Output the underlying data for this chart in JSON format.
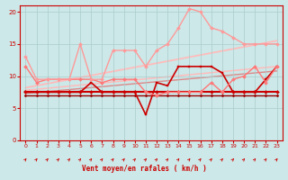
{
  "xlabel": "Vent moyen/en rafales ( km/h )",
  "xlim": [
    -0.5,
    23.5
  ],
  "ylim": [
    0,
    21
  ],
  "yticks": [
    0,
    5,
    10,
    15,
    20
  ],
  "xticks": [
    0,
    1,
    2,
    3,
    4,
    5,
    6,
    7,
    8,
    9,
    10,
    11,
    12,
    13,
    14,
    15,
    16,
    17,
    18,
    19,
    20,
    21,
    22,
    23
  ],
  "bg_color": "#cce8e8",
  "grid_color": "#aacccc",
  "line_flat1": {
    "x": [
      0,
      1,
      2,
      3,
      4,
      5,
      6,
      7,
      8,
      9,
      10,
      11,
      12,
      13,
      14,
      15,
      16,
      17,
      18,
      19,
      20,
      21,
      22,
      23
    ],
    "y": [
      7.5,
      7.5,
      7.5,
      7.5,
      7.5,
      7.5,
      7.5,
      7.5,
      7.5,
      7.5,
      7.5,
      7.5,
      7.5,
      7.5,
      7.5,
      7.5,
      7.5,
      7.5,
      7.5,
      7.5,
      7.5,
      7.5,
      7.5,
      7.5
    ],
    "color": "#cc0000",
    "lw": 1.5,
    "marker": "D",
    "ms": 2.0
  },
  "line_flat2": {
    "x": [
      0,
      1,
      2,
      3,
      4,
      5,
      6,
      7,
      8,
      9,
      10,
      11,
      12,
      13,
      14,
      15,
      16,
      17,
      18,
      19,
      20,
      21,
      22,
      23
    ],
    "y": [
      7.0,
      7.0,
      7.0,
      7.0,
      7.0,
      7.0,
      7.0,
      7.0,
      7.0,
      7.0,
      7.0,
      7.0,
      7.0,
      7.0,
      7.0,
      7.0,
      7.0,
      7.0,
      7.0,
      7.0,
      7.0,
      7.0,
      7.0,
      7.0
    ],
    "color": "#990000",
    "lw": 1.0,
    "marker": "D",
    "ms": 1.5
  },
  "line_wavy": {
    "x": [
      0,
      1,
      2,
      3,
      4,
      5,
      6,
      7,
      8,
      9,
      10,
      11,
      12,
      13,
      14,
      15,
      16,
      17,
      18,
      19,
      20,
      21,
      22,
      23
    ],
    "y": [
      7.5,
      7.5,
      7.5,
      7.5,
      7.5,
      7.5,
      9.0,
      7.5,
      7.5,
      7.5,
      7.5,
      4.0,
      9.0,
      8.5,
      11.5,
      11.5,
      11.5,
      11.5,
      10.5,
      7.5,
      7.5,
      7.5,
      9.5,
      11.5
    ],
    "color": "#cc0000",
    "lw": 1.2,
    "marker": "s",
    "ms": 2.0
  },
  "line_pink1": {
    "x": [
      0,
      1,
      2,
      3,
      4,
      5,
      6,
      7,
      8,
      9,
      10,
      11,
      12,
      13,
      14,
      15,
      16,
      17,
      18,
      19,
      20,
      21,
      22,
      23
    ],
    "y": [
      11.5,
      9.0,
      9.5,
      9.5,
      9.5,
      9.5,
      9.5,
      9.0,
      9.5,
      9.5,
      9.5,
      7.5,
      7.0,
      7.5,
      7.5,
      7.5,
      7.5,
      9.0,
      7.5,
      9.5,
      10.0,
      11.5,
      9.0,
      11.5
    ],
    "color": "#ff7777",
    "lw": 1.0,
    "marker": "D",
    "ms": 2.0
  },
  "line_pink2": {
    "x": [
      0,
      1,
      2,
      3,
      4,
      5,
      6,
      7,
      8,
      9,
      10,
      11,
      12,
      13,
      14,
      15,
      16,
      17,
      18,
      19,
      20,
      21,
      22,
      23
    ],
    "y": [
      13.0,
      9.5,
      9.5,
      9.5,
      9.5,
      15.0,
      9.5,
      9.5,
      14.0,
      14.0,
      14.0,
      11.5,
      14.0,
      15.0,
      17.5,
      20.5,
      20.0,
      17.5,
      17.0,
      16.0,
      15.0,
      15.0,
      15.0,
      15.0
    ],
    "color": "#ff9999",
    "lw": 1.0,
    "marker": "D",
    "ms": 2.0
  },
  "slope_line1": {
    "x": [
      0,
      23
    ],
    "y": [
      8.2,
      15.5
    ],
    "color": "#ffbbbb",
    "lw": 1.3
  },
  "slope_line2": {
    "x": [
      0,
      23
    ],
    "y": [
      7.8,
      11.5
    ],
    "color": "#ffbbbb",
    "lw": 1.1
  },
  "slope_line3": {
    "x": [
      0,
      23
    ],
    "y": [
      7.3,
      10.8
    ],
    "color": "#dd8888",
    "lw": 1.0
  }
}
